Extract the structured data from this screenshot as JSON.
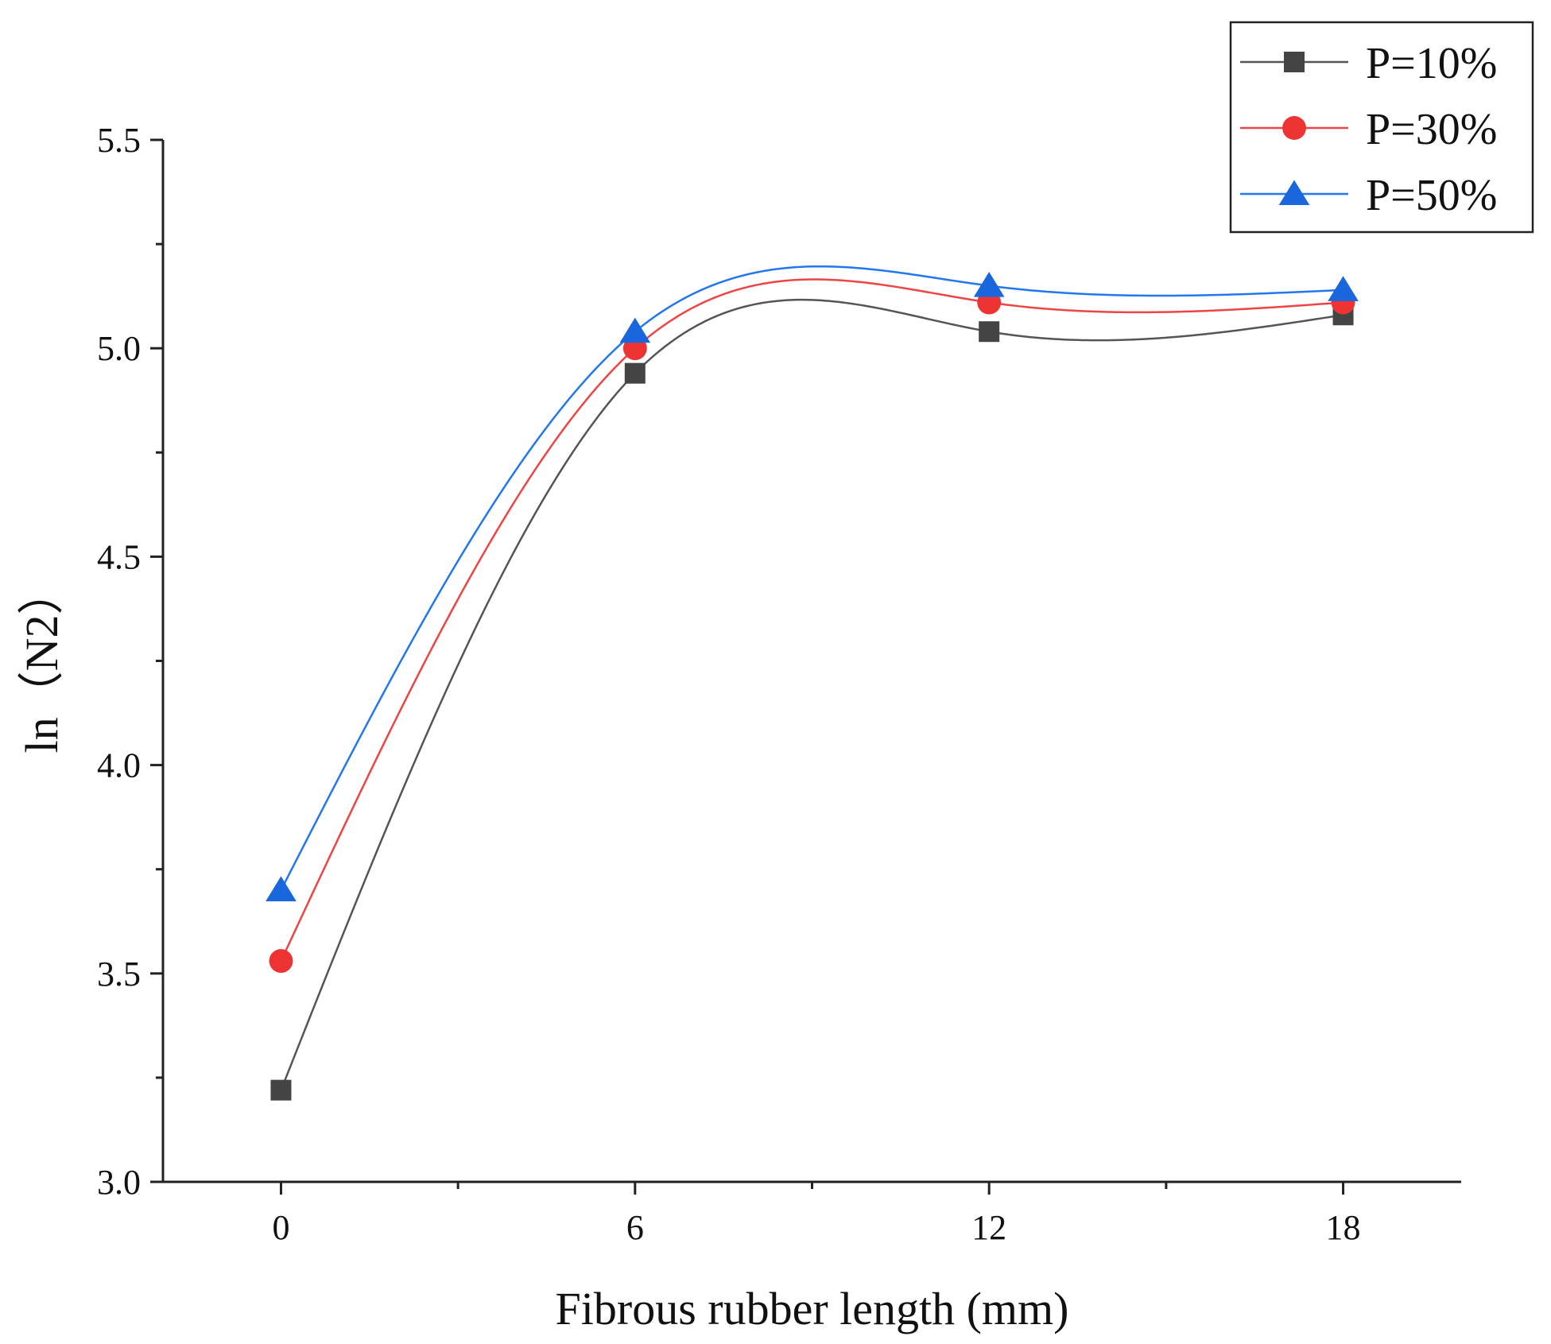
{
  "chart_data": {
    "type": "line",
    "title": "",
    "xlabel": "Fibrous rubber length (mm)",
    "ylabel": "ln（N2）",
    "x": [
      0,
      6,
      12,
      18
    ],
    "x_tick_labels": [
      "0",
      "6",
      "12",
      "18"
    ],
    "xlim": [
      -2,
      20
    ],
    "ylim": [
      3.0,
      5.5
    ],
    "y_ticks": [
      3.0,
      3.5,
      4.0,
      4.5,
      5.0,
      5.5
    ],
    "y_tick_labels": [
      "3.0",
      "3.5",
      "4.0",
      "4.5",
      "5.0",
      "5.5"
    ],
    "grid": false,
    "legend_position": "top-right",
    "series": [
      {
        "name": "P=10%",
        "values": [
          3.22,
          4.94,
          5.04,
          5.08
        ],
        "color": "#444444",
        "line_color": "#555555",
        "marker": "square"
      },
      {
        "name": "P=30%",
        "values": [
          3.53,
          5.0,
          5.11,
          5.11
        ],
        "color": "#ee3333",
        "line_color": "#ee4444",
        "marker": "circle"
      },
      {
        "name": "P=50%",
        "values": [
          3.7,
          5.04,
          5.15,
          5.14
        ],
        "color": "#1a66dd",
        "line_color": "#2277ee",
        "marker": "triangle"
      }
    ]
  }
}
